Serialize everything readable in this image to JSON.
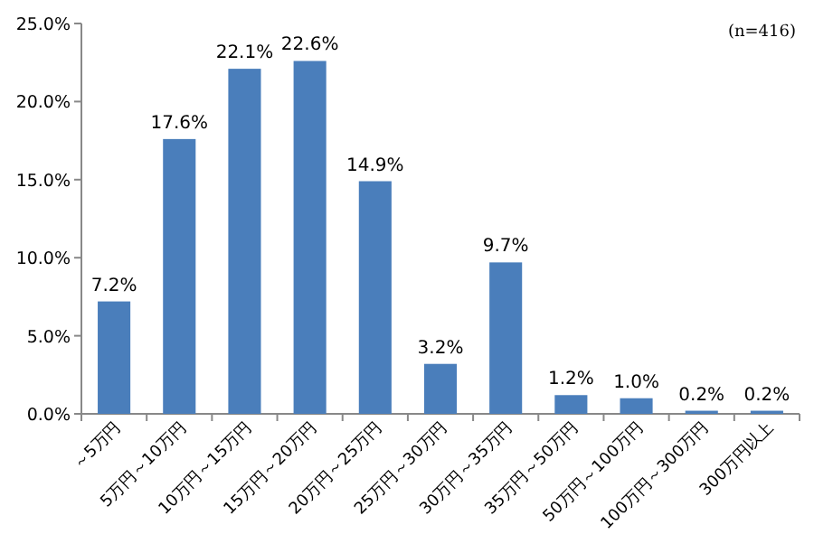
{
  "chart_data": {
    "type": "bar",
    "categories": [
      "～5万円",
      "5万円～10万円",
      "10万円～15万円",
      "15万円～20万円",
      "20万円～25万円",
      "25万円～30万円",
      "30万円～35万円",
      "35万円～50万円",
      "50万円～100万円",
      "100万円～300万円",
      "300万円以上"
    ],
    "values": [
      7.2,
      17.6,
      22.1,
      22.6,
      14.9,
      3.2,
      9.7,
      1.2,
      1.0,
      0.2,
      0.2
    ],
    "value_labels": [
      "7.2%",
      "17.6%",
      "22.1%",
      "22.6%",
      "14.9%",
      "3.2%",
      "9.7%",
      "1.2%",
      "1.0%",
      "0.2%",
      "0.2%"
    ],
    "color": "#4a7ebb",
    "ylim": [
      0,
      25
    ],
    "yticks": [
      {
        "value": 0,
        "label": "0.0%"
      },
      {
        "value": 5,
        "label": "5.0%"
      },
      {
        "value": 10,
        "label": "10.0%"
      },
      {
        "value": 15,
        "label": "15.0%"
      },
      {
        "value": 20,
        "label": "20.0%"
      },
      {
        "value": 25,
        "label": "25.0%"
      }
    ],
    "annotations": [
      "(n=416)"
    ]
  }
}
